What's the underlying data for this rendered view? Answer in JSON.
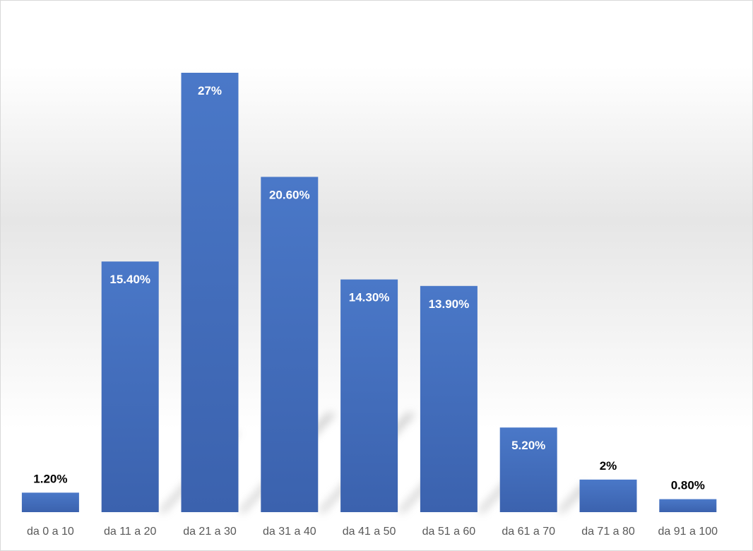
{
  "chart_data": {
    "type": "bar",
    "categories": [
      "da 0 a 10",
      "da 11 a 20",
      "da 21 a 30",
      "da 31 a 40",
      "da 41 a 50",
      "da 51 a 60",
      "da 61 a 70",
      "da 71 a 80",
      "da 91 a 100"
    ],
    "values": [
      1.2,
      15.4,
      27,
      20.6,
      14.3,
      13.9,
      5.2,
      2,
      0.8
    ],
    "data_labels": [
      "1.20%",
      "15.40%",
      "27%",
      "20.60%",
      "14.30%",
      "13.90%",
      "5.20%",
      "2%",
      "0.80%"
    ],
    "title": "",
    "xlabel": "",
    "ylabel": "",
    "ylim": [
      0,
      27
    ],
    "grid": false,
    "legend": "none",
    "bar_color": "#4472c4",
    "label_color_inside": "#ffffff",
    "label_color_outside": "#000000"
  }
}
